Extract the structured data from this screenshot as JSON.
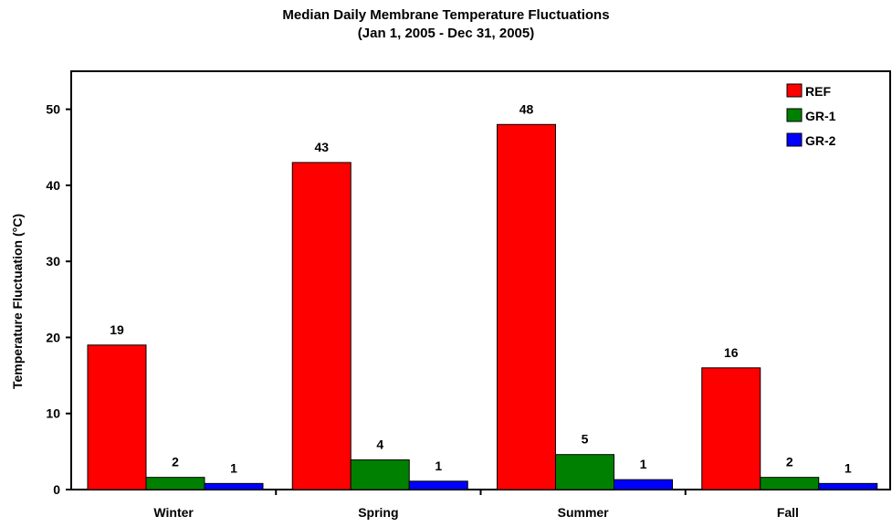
{
  "chart_data": {
    "type": "bar",
    "title": "Median Daily Membrane Temperature Fluctuations",
    "subtitle": "(Jan 1, 2005 - Dec 31, 2005)",
    "xlabel": "",
    "ylabel": "Temperature Fluctuation (°C)",
    "categories": [
      "Winter",
      "Spring",
      "Summer",
      "Fall"
    ],
    "series": [
      {
        "name": "REF",
        "color": "#ff0000",
        "values": [
          19,
          43,
          48,
          16
        ],
        "labels": [
          "19",
          "43",
          "48",
          "16"
        ]
      },
      {
        "name": "GR-1",
        "color": "#008000",
        "values": [
          1.6,
          3.9,
          4.6,
          1.6
        ],
        "labels": [
          "2",
          "4",
          "5",
          "2"
        ]
      },
      {
        "name": "GR-2",
        "color": "#0000ff",
        "values": [
          0.8,
          1.1,
          1.3,
          0.8
        ],
        "labels": [
          "1",
          "1",
          "1",
          "1"
        ]
      }
    ],
    "ylim": [
      0,
      55
    ],
    "yticks": [
      0,
      10,
      20,
      30,
      40,
      50
    ],
    "grid": false,
    "legend_position": "top-right"
  }
}
